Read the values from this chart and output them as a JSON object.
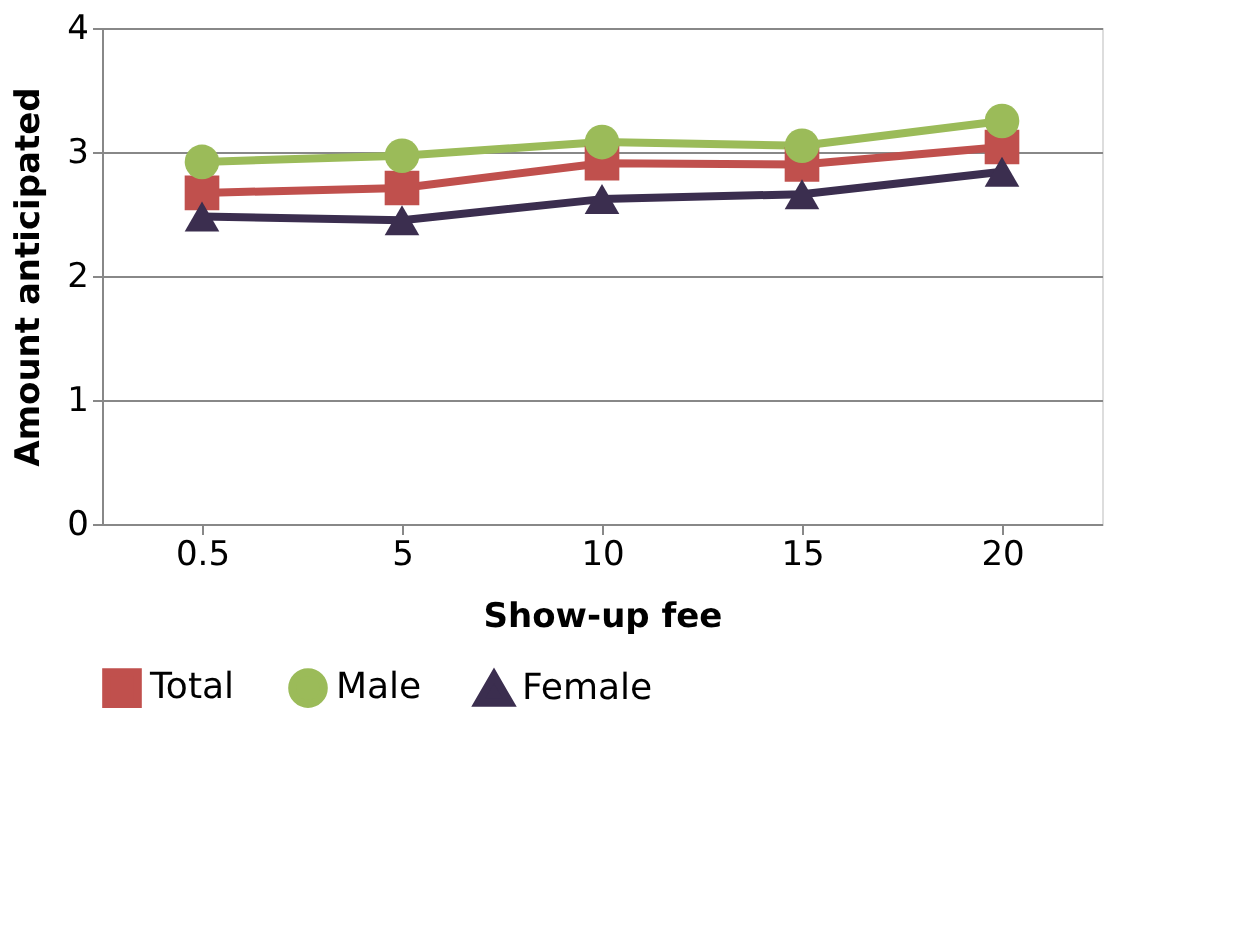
{
  "chart_data": {
    "type": "line",
    "xlabel": "Show-up fee",
    "ylabel": "Amount anticipated",
    "categories": [
      "0.5",
      "5",
      "10",
      "15",
      "20"
    ],
    "series": [
      {
        "name": "Total",
        "color": "#c0504d",
        "marker": "square",
        "values": [
          2.67,
          2.71,
          2.91,
          2.9,
          3.04
        ]
      },
      {
        "name": "Male",
        "color": "#9bbb59",
        "marker": "circle",
        "values": [
          2.92,
          2.97,
          3.08,
          3.05,
          3.25
        ]
      },
      {
        "name": "Female",
        "color": "#3b2e4f",
        "marker": "triangle",
        "values": [
          2.48,
          2.45,
          2.62,
          2.66,
          2.84
        ]
      }
    ],
    "ylim": [
      0,
      4
    ],
    "yticks": [
      0,
      1,
      2,
      3,
      4
    ],
    "grid": "y",
    "legend": "bottom",
    "line_style": "solid"
  }
}
